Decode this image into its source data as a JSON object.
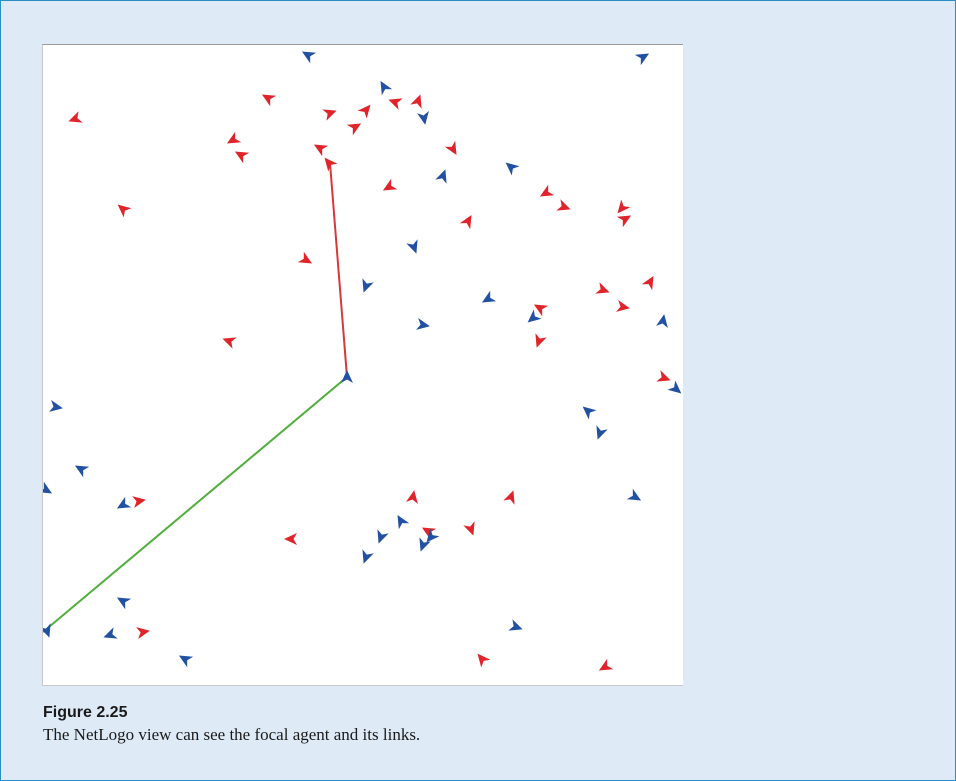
{
  "figure": {
    "label": "Figure 2.25",
    "caption": "The NetLogo view can see the focal agent and its links."
  },
  "colors": {
    "background": "#deebf6",
    "border": "#2a8fc4",
    "red_agent": "#e0242b",
    "blue_agent": "#2251a3",
    "red_link": "#d33a3a",
    "green_link": "#4fae3c"
  },
  "view": {
    "focal_agent": {
      "color": "blue",
      "heading": 0
    },
    "links": [
      {
        "color": "red",
        "to": "red agent (upper)"
      },
      {
        "color": "green",
        "to": "blue agent (lower-left)"
      }
    ]
  }
}
